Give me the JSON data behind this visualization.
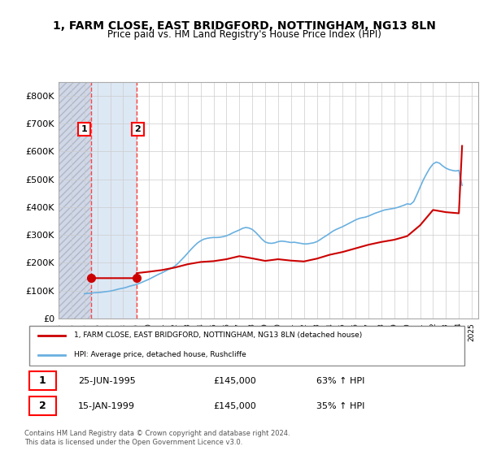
{
  "title": "1, FARM CLOSE, EAST BRIDGFORD, NOTTINGHAM, NG13 8LN",
  "subtitle": "Price paid vs. HM Land Registry's House Price Index (HPI)",
  "legend_line1": "1, FARM CLOSE, EAST BRIDGFORD, NOTTINGHAM, NG13 8LN (detached house)",
  "legend_line2": "HPI: Average price, detached house, Rushcliffe",
  "table_rows": [
    {
      "num": "1",
      "date": "25-JUN-1995",
      "price": "£145,000",
      "change": "63% ↑ HPI"
    },
    {
      "num": "2",
      "date": "15-JAN-1999",
      "price": "£145,000",
      "change": "35% ↑ HPI"
    }
  ],
  "footer": "Contains HM Land Registry data © Crown copyright and database right 2024.\nThis data is licensed under the Open Government Licence v3.0.",
  "sale1_date": 1995.49,
  "sale2_date": 1999.04,
  "sale1_price": 145000,
  "sale2_price": 145000,
  "hpi_color": "#6ab0e0",
  "price_color": "#cc0000",
  "vline_color": "#ff4444",
  "shade_color": "#dde8f5",
  "hatch_color": "#c0c8d8",
  "ylim": [
    0,
    850000
  ],
  "yticks": [
    0,
    100000,
    200000,
    300000,
    400000,
    500000,
    600000,
    700000,
    800000
  ],
  "ylabel_fmt": [
    "£0",
    "£100K",
    "£200K",
    "£300K",
    "£400K",
    "£500K",
    "£600K",
    "£700K",
    "£800K"
  ],
  "xlim_start": 1993.0,
  "xlim_end": 2025.5,
  "xticks": [
    1993,
    1994,
    1995,
    1996,
    1997,
    1998,
    1999,
    2000,
    2001,
    2002,
    2003,
    2004,
    2005,
    2006,
    2007,
    2008,
    2009,
    2010,
    2011,
    2012,
    2013,
    2014,
    2015,
    2016,
    2017,
    2018,
    2019,
    2020,
    2021,
    2022,
    2023,
    2024,
    2025
  ],
  "hpi_data_x": [
    1995.0,
    1995.25,
    1995.5,
    1995.75,
    1996.0,
    1996.25,
    1996.5,
    1996.75,
    1997.0,
    1997.25,
    1997.5,
    1997.75,
    1998.0,
    1998.25,
    1998.5,
    1998.75,
    1999.0,
    1999.25,
    1999.5,
    1999.75,
    2000.0,
    2000.25,
    2000.5,
    2000.75,
    2001.0,
    2001.25,
    2001.5,
    2001.75,
    2002.0,
    2002.25,
    2002.5,
    2002.75,
    2003.0,
    2003.25,
    2003.5,
    2003.75,
    2004.0,
    2004.25,
    2004.5,
    2004.75,
    2005.0,
    2005.25,
    2005.5,
    2005.75,
    2006.0,
    2006.25,
    2006.5,
    2006.75,
    2007.0,
    2007.25,
    2007.5,
    2007.75,
    2008.0,
    2008.25,
    2008.5,
    2008.75,
    2009.0,
    2009.25,
    2009.5,
    2009.75,
    2010.0,
    2010.25,
    2010.5,
    2010.75,
    2011.0,
    2011.25,
    2011.5,
    2011.75,
    2012.0,
    2012.25,
    2012.5,
    2012.75,
    2013.0,
    2013.25,
    2013.5,
    2013.75,
    2014.0,
    2014.25,
    2014.5,
    2014.75,
    2015.0,
    2015.25,
    2015.5,
    2015.75,
    2016.0,
    2016.25,
    2016.5,
    2016.75,
    2017.0,
    2017.25,
    2017.5,
    2017.75,
    2018.0,
    2018.25,
    2018.5,
    2018.75,
    2019.0,
    2019.25,
    2019.5,
    2019.75,
    2020.0,
    2020.25,
    2020.5,
    2020.75,
    2021.0,
    2021.25,
    2021.5,
    2021.75,
    2022.0,
    2022.25,
    2022.5,
    2022.75,
    2023.0,
    2023.25,
    2023.5,
    2023.75,
    2024.0,
    2024.25
  ],
  "hpi_data_y": [
    89000,
    90000,
    91000,
    92500,
    93000,
    94000,
    95500,
    97000,
    98500,
    101000,
    104000,
    107000,
    109000,
    112000,
    116000,
    119000,
    122000,
    126000,
    131000,
    136000,
    141000,
    147000,
    153000,
    159000,
    164000,
    170000,
    176000,
    181000,
    188000,
    198000,
    210000,
    222000,
    235000,
    248000,
    260000,
    271000,
    279000,
    285000,
    288000,
    290000,
    291000,
    291000,
    292000,
    294000,
    297000,
    302000,
    308000,
    313000,
    318000,
    324000,
    327000,
    325000,
    320000,
    310000,
    298000,
    285000,
    275000,
    271000,
    270000,
    272000,
    276000,
    278000,
    277000,
    275000,
    273000,
    274000,
    272000,
    270000,
    268000,
    268000,
    270000,
    272000,
    276000,
    283000,
    291000,
    298000,
    306000,
    314000,
    320000,
    325000,
    330000,
    336000,
    342000,
    348000,
    354000,
    359000,
    362000,
    364000,
    368000,
    373000,
    378000,
    382000,
    386000,
    390000,
    392000,
    394000,
    396000,
    399000,
    403000,
    407000,
    412000,
    410000,
    420000,
    445000,
    472000,
    498000,
    520000,
    540000,
    555000,
    562000,
    558000,
    548000,
    540000,
    535000,
    532000,
    530000,
    532000,
    478000
  ],
  "price_data_x": [
    1995.49,
    1999.04,
    1999.04,
    2000.0,
    2001.0,
    2002.0,
    2003.0,
    2004.0,
    2005.0,
    2006.0,
    2007.0,
    2008.0,
    2009.0,
    2010.0,
    2011.0,
    2012.0,
    2013.0,
    2014.0,
    2015.0,
    2016.0,
    2017.0,
    2018.0,
    2019.0,
    2020.0,
    2021.0,
    2022.0,
    2023.0,
    2024.0,
    2024.25
  ],
  "price_data_y": [
    145000,
    145000,
    163000,
    168000,
    174000,
    183000,
    195000,
    203000,
    206000,
    213000,
    224000,
    216000,
    207000,
    213000,
    208000,
    205000,
    215000,
    229000,
    239000,
    252000,
    265000,
    275000,
    283000,
    296000,
    335000,
    390000,
    382000,
    378000,
    620000
  ]
}
